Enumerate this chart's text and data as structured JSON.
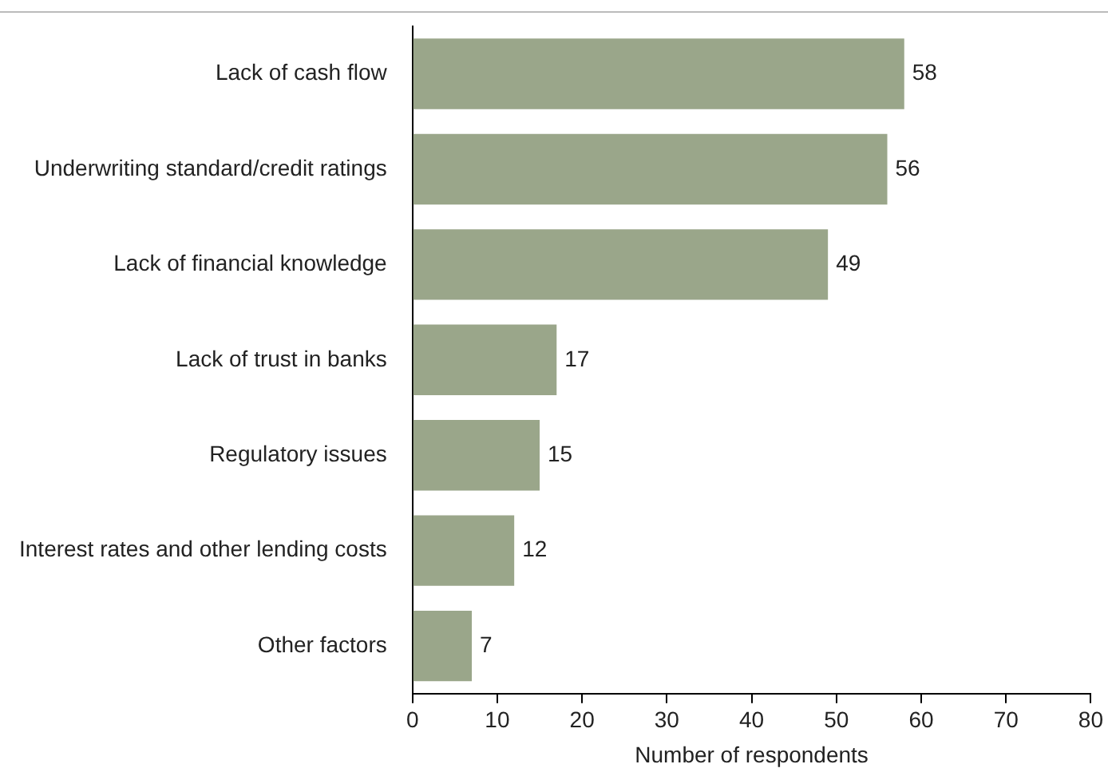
{
  "chart_data": {
    "type": "bar",
    "orientation": "horizontal",
    "xlabel": "Number of respondents",
    "categories": [
      "Lack of cash flow",
      "Underwriting standard/credit ratings",
      "Lack of financial knowledge",
      "Lack of trust in banks",
      "Regulatory issues",
      "Interest rates and other lending costs",
      "Other factors"
    ],
    "values": [
      58,
      56,
      49,
      17,
      15,
      12,
      7
    ],
    "color": "#9aa68a",
    "xlim": [
      0,
      80
    ],
    "xticks": [
      0,
      10,
      20,
      30,
      40,
      50,
      60,
      70,
      80
    ],
    "grid": false,
    "legend": false,
    "data_labels": true
  }
}
